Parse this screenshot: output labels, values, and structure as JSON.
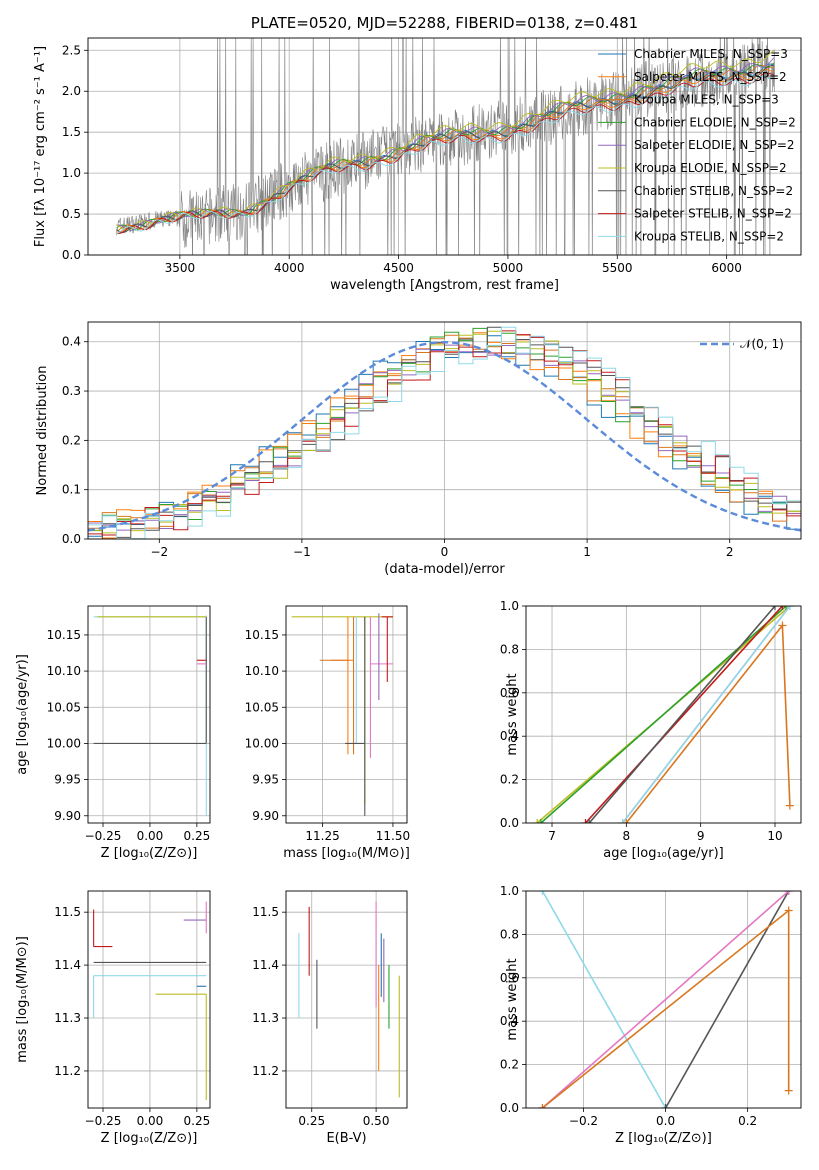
{
  "panels": [
    {
      "id": "spectrum",
      "title": "PLATE=0520, MJD=52288, FIBERID=0138, z=0.481",
      "xlabel": "wavelength [Angstrom, rest frame]",
      "ylabel": "Flux [fλ 10⁻¹⁷ erg cm⁻² s⁻¹ A⁻¹]",
      "xlim": [
        3080,
        6340
      ],
      "ylim": [
        0,
        2.65
      ],
      "xticks": [
        3500,
        4000,
        4500,
        5000,
        5500,
        6000
      ],
      "yticks": [
        "0.0",
        "0.5",
        "1.0",
        "1.5",
        "2.0",
        "2.5"
      ],
      "ytick_values": [
        0,
        0.5,
        1.0,
        1.5,
        2.0,
        2.5
      ],
      "legend": [
        {
          "label": "Chabrier MILES, N_SSP=3",
          "color": "#1f77b4"
        },
        {
          "label": "Salpeter MILES, N_SSP=2",
          "color": "#ff7f0e"
        },
        {
          "label": "Kroupa MILES, N_SSP=3",
          "color": "#d9771f"
        },
        {
          "label": "Chabrier ELODIE, N_SSP=2",
          "color": "#2ca02c"
        },
        {
          "label": "Salpeter ELODIE, N_SSP=2",
          "color": "#9467bd"
        },
        {
          "label": "Kroupa ELODIE, N_SSP=2",
          "color": "#bcbd22"
        },
        {
          "label": "Chabrier STELIB, N_SSP=2",
          "color": "#555555"
        },
        {
          "label": "Salpeter STELIB, N_SSP=2",
          "color": "#c21a1a"
        },
        {
          "label": "Kroupa STELIB, N_SSP=2",
          "color": "#8fd9e8"
        }
      ]
    },
    {
      "id": "residuals",
      "xlabel": "(data-model)/error",
      "ylabel": "Normed distribution",
      "xlim": [
        -2.5,
        2.5
      ],
      "ylim": [
        0,
        0.44
      ],
      "xticks": [
        "−2",
        "−1",
        "0",
        "1",
        "2"
      ],
      "xtick_values": [
        -2,
        -1,
        0,
        1,
        2
      ],
      "yticks": [
        "0.0",
        "0.1",
        "0.2",
        "0.3",
        "0.4"
      ],
      "ytick_values": [
        0,
        0.1,
        0.2,
        0.3,
        0.4
      ],
      "legend_label": "𝒩(0, 1)"
    },
    {
      "id": "age_vs_Z",
      "xlabel": "Z [log₁₀(Z/Z⊙)]",
      "ylabel": "age  [log₁₀(age/yr)]",
      "xlim": [
        -0.33,
        0.32
      ],
      "ylim": [
        9.89,
        10.19
      ],
      "xticks": [
        "−0.25",
        "0.00",
        "0.25"
      ],
      "xtick_values": [
        -0.25,
        0,
        0.25
      ],
      "yticks": [
        "9.90",
        "9.95",
        "10.00",
        "10.05",
        "10.10",
        "10.15"
      ],
      "ytick_values": [
        9.9,
        9.95,
        10.0,
        10.05,
        10.1,
        10.15
      ]
    },
    {
      "id": "age_vs_mass",
      "xlabel": "mass [log₁₀(M/M⊙)]",
      "xlim": [
        11.12,
        11.55
      ],
      "ylim": [
        9.89,
        10.19
      ],
      "xticks": [
        "11.25",
        "11.50"
      ],
      "xtick_values": [
        11.25,
        11.5
      ],
      "yticks": [
        "9.90",
        "9.95",
        "10.00",
        "10.05",
        "10.10",
        "10.15"
      ],
      "ytick_values": [
        9.9,
        9.95,
        10.0,
        10.05,
        10.1,
        10.15
      ]
    },
    {
      "id": "weight_vs_age",
      "xlabel": "age  [log₁₀(age/yr)]",
      "ylabel": "mass weight",
      "xlim": [
        6.65,
        10.35
      ],
      "ylim": [
        0,
        1.0
      ],
      "xticks": [
        "7",
        "8",
        "9",
        "10"
      ],
      "xtick_values": [
        7,
        8,
        9,
        10
      ],
      "yticks": [
        "0.0",
        "0.2",
        "0.4",
        "0.6",
        "0.8",
        "1.0"
      ],
      "ytick_values": [
        0,
        0.2,
        0.4,
        0.6,
        0.8,
        1.0
      ]
    },
    {
      "id": "mass_vs_Z",
      "xlabel": "Z [log₁₀(Z/Z⊙)]",
      "ylabel": "mass [log₁₀(M/M⊙)]",
      "xlim": [
        -0.33,
        0.32
      ],
      "ylim": [
        11.13,
        11.54
      ],
      "xticks": [
        "−0.25",
        "0.00",
        "0.25"
      ],
      "xtick_values": [
        -0.25,
        0,
        0.25
      ],
      "yticks": [
        "11.2",
        "11.3",
        "11.4",
        "11.5"
      ],
      "ytick_values": [
        11.2,
        11.3,
        11.4,
        11.5
      ]
    },
    {
      "id": "mass_vs_EBV",
      "xlabel": "E(B-V)",
      "xlim": [
        0.15,
        0.62
      ],
      "ylim": [
        11.13,
        11.54
      ],
      "xticks": [
        "0.25",
        "0.50"
      ],
      "xtick_values": [
        0.25,
        0.5
      ],
      "yticks": [
        "11.2",
        "11.3",
        "11.4",
        "11.5"
      ],
      "ytick_values": [
        11.2,
        11.3,
        11.4,
        11.5
      ]
    },
    {
      "id": "weight_vs_Z",
      "xlabel": "Z [log₁₀(Z/Z⊙)]",
      "ylabel": "mass weight",
      "xlim": [
        -0.34,
        0.33
      ],
      "ylim": [
        0,
        1.0
      ],
      "xticks": [
        "−0.2",
        "0.0",
        "0.2"
      ],
      "xtick_values": [
        -0.2,
        0,
        0.2
      ],
      "yticks": [
        "0.0",
        "0.2",
        "0.4",
        "0.6",
        "0.8",
        "1.0"
      ],
      "ytick_values": [
        0,
        0.2,
        0.4,
        0.6,
        0.8,
        1.0
      ]
    }
  ],
  "chart_data": [
    {
      "type": "line",
      "title": "PLATE=0520, MJD=52288, FIBERID=0138, z=0.481",
      "xlabel": "wavelength [Angstrom, rest frame]",
      "ylabel": "Flux [fλ 10⁻¹⁷ erg cm⁻² s⁻¹ A⁻¹]",
      "xlim": [
        3080,
        6340
      ],
      "ylim": [
        0,
        2.65
      ],
      "observed_color": "#808080",
      "model_continuum": {
        "x": [
          3210,
          3400,
          3600,
          3800,
          4000,
          4200,
          4400,
          4600,
          4800,
          5000,
          5200,
          5400,
          5600,
          5800,
          6000,
          6220
        ],
        "y": [
          0.35,
          0.43,
          0.46,
          0.55,
          0.83,
          1.05,
          1.2,
          1.35,
          1.45,
          1.55,
          1.7,
          1.85,
          2.0,
          2.1,
          2.2,
          2.35
        ]
      },
      "series": [
        {
          "name": "Chabrier MILES, N_SSP=3",
          "color": "#1f77b4",
          "scale": 1.0
        },
        {
          "name": "Salpeter MILES, N_SSP=2",
          "color": "#ff7f0e",
          "scale": 0.98
        },
        {
          "name": "Kroupa MILES, N_SSP=3",
          "color": "#d9771f",
          "scale": 1.01
        },
        {
          "name": "Chabrier ELODIE, N_SSP=2",
          "color": "#2ca02c",
          "scale": 1.02
        },
        {
          "name": "Salpeter ELODIE, N_SSP=2",
          "color": "#9467bd",
          "scale": 1.03
        },
        {
          "name": "Kroupa ELODIE, N_SSP=2",
          "color": "#bcbd22",
          "scale": 1.06
        },
        {
          "name": "Chabrier STELIB, N_SSP=2",
          "color": "#555555",
          "scale": 0.99
        },
        {
          "name": "Salpeter STELIB, N_SSP=2",
          "color": "#c21a1a",
          "scale": 0.96
        },
        {
          "name": "Kroupa STELIB, N_SSP=2",
          "color": "#8fd9e8",
          "scale": 0.95
        }
      ]
    },
    {
      "type": "bar",
      "xlabel": "(data-model)/error",
      "ylabel": "Normed distribution",
      "xlim": [
        -2.5,
        2.5
      ],
      "ylim": [
        0,
        0.44
      ],
      "bin_edges": [
        -2.5,
        2.5
      ],
      "bin_width": 0.1,
      "reference_curve": {
        "name": "𝒩(0, 1)",
        "mean": 0,
        "sigma": 1,
        "color": "#5b8bd9"
      },
      "series": [
        {
          "color": "#1f77b4"
        },
        {
          "color": "#ff7f0e"
        },
        {
          "color": "#d9771f"
        },
        {
          "color": "#2ca02c"
        },
        {
          "color": "#9467bd"
        },
        {
          "color": "#bcbd22"
        },
        {
          "color": "#555555"
        },
        {
          "color": "#c21a1a"
        },
        {
          "color": "#8fd9e8"
        }
      ]
    },
    {
      "type": "scatter",
      "xlabel": "Z [log₁₀(Z/Z⊙)]",
      "ylabel": "age  [log₁₀(age/yr)]",
      "points": [
        {
          "x": 0.3,
          "y": 10.175,
          "xerr": [
            0.6,
            0
          ],
          "yerr": [
            0.275,
            0.002
          ],
          "color": "#8fd9e8"
        },
        {
          "x": 0.3,
          "y": 10.0,
          "xerr": [
            0.6,
            0
          ],
          "yerr": [
            0,
            0.175
          ],
          "color": "#555555"
        },
        {
          "x": 0.3,
          "y": 10.175,
          "xerr": [
            0.58,
            0
          ],
          "yerr": [
            0.0,
            0.0
          ],
          "color": "#bcbd22"
        },
        {
          "x": 0.3,
          "y": 10.115,
          "xerr": [
            0.05,
            0
          ],
          "yerr": [
            0.0,
            0.0
          ],
          "color": "#c21a1a"
        },
        {
          "x": 0.3,
          "y": 10.11,
          "xerr": [
            0.05,
            0
          ],
          "yerr": [
            0.0,
            0.0
          ],
          "color": "#e377c2"
        }
      ]
    },
    {
      "type": "scatter",
      "xlabel": "mass [log₁₀(M/M⊙)]",
      "points": [
        {
          "x": 11.4,
          "y": 10.175,
          "xerr": [
            0.26,
            0.1
          ],
          "yerr": [
            0.26,
            0.0
          ],
          "color": "#bcbd22"
        },
        {
          "x": 11.34,
          "y": 10.115,
          "xerr": [
            0.06,
            0.0
          ],
          "yerr": [
            0.13,
            0.06
          ],
          "color": "#ff7f0e"
        },
        {
          "x": 11.36,
          "y": 10.115,
          "xerr": [
            0.12,
            0.0
          ],
          "yerr": [
            0.13,
            0.06
          ],
          "color": "#d9771f"
        },
        {
          "x": 11.37,
          "y": 10.11,
          "xerr": [
            0.0,
            0.0
          ],
          "yerr": [
            0.11,
            0.065
          ],
          "color": "#8fd9e8"
        },
        {
          "x": 11.4,
          "y": 10.0,
          "xerr": [
            0.07,
            0.0
          ],
          "yerr": [
            0.1,
            0.175
          ],
          "color": "#555555"
        },
        {
          "x": 11.42,
          "y": 10.11,
          "xerr": [
            0.0,
            0.08
          ],
          "yerr": [
            0.13,
            0.065
          ],
          "color": "#e377c2"
        },
        {
          "x": 11.45,
          "y": 10.16,
          "xerr": [
            0.0,
            0.0
          ],
          "yerr": [
            0.1,
            0.02
          ],
          "color": "#9467bd"
        },
        {
          "x": 11.48,
          "y": 10.175,
          "xerr": [
            0.02,
            0.02
          ],
          "yerr": [
            0.09,
            0.0
          ],
          "color": "#c21a1a"
        }
      ]
    },
    {
      "type": "line",
      "xlabel": "age  [log₁₀(age/yr)]",
      "ylabel": "mass weight",
      "series": [
        {
          "color": "#bcbd22",
          "x": [
            6.8,
            10.2
          ],
          "y": [
            0,
            1.0
          ]
        },
        {
          "color": "#2ca02c",
          "x": [
            6.85,
            10.15
          ],
          "y": [
            0,
            1.0
          ]
        },
        {
          "color": "#c21a1a",
          "x": [
            7.45,
            10.1
          ],
          "y": [
            0,
            1.0
          ]
        },
        {
          "color": "#555555",
          "x": [
            7.5,
            10.0
          ],
          "y": [
            0,
            1.0
          ]
        },
        {
          "color": "#e377c2",
          "x": [
            7.95,
            10.2
          ],
          "y": [
            0,
            1.0
          ]
        },
        {
          "color": "#8fd9e8",
          "x": [
            7.95,
            10.2
          ],
          "y": [
            0,
            1.0
          ]
        },
        {
          "color": "#d9771f",
          "x": [
            8.0,
            10.1,
            10.2
          ],
          "y": [
            0,
            0.91,
            0.08
          ]
        }
      ]
    },
    {
      "type": "scatter",
      "xlabel": "Z [log₁₀(Z/Z⊙)]",
      "ylabel": "mass [log₁₀(M/M⊙)]",
      "points": [
        {
          "x": -0.3,
          "y": 11.435,
          "xerr": [
            0,
            0.1
          ],
          "yerr": [
            0.0,
            0.07
          ],
          "color": "#c21a1a"
        },
        {
          "x": -0.3,
          "y": 11.405,
          "xerr": [
            0,
            0.6
          ],
          "yerr": [
            0.0,
            0.0
          ],
          "color": "#555555"
        },
        {
          "x": -0.3,
          "y": 11.38,
          "xerr": [
            0,
            0.6
          ],
          "yerr": [
            0.08,
            0.0
          ],
          "color": "#8fd9e8"
        },
        {
          "x": 0.3,
          "y": 11.345,
          "xerr": [
            0.27,
            0
          ],
          "yerr": [
            0.2,
            0.0
          ],
          "color": "#bcbd22"
        },
        {
          "x": 0.3,
          "y": 11.485,
          "xerr": [
            0.12,
            0
          ],
          "yerr": [
            0.0,
            0.0
          ],
          "color": "#9467bd"
        },
        {
          "x": 0.3,
          "y": 11.36,
          "xerr": [
            0.05,
            0
          ],
          "yerr": [
            0.0,
            0.0
          ],
          "color": "#1f77b4"
        },
        {
          "x": 0.3,
          "y": 11.46,
          "xerr": [
            0.0,
            0.0
          ],
          "yerr": [
            0.0,
            0.06
          ],
          "color": "#e377c2"
        }
      ]
    },
    {
      "type": "scatter",
      "xlabel": "E(B-V)",
      "points": [
        {
          "x": 0.2,
          "y": 11.38,
          "yerr": [
            0.08,
            0.08
          ],
          "color": "#8fd9e8"
        },
        {
          "x": 0.24,
          "y": 11.45,
          "yerr": [
            0.07,
            0.06
          ],
          "color": "#c21a1a"
        },
        {
          "x": 0.27,
          "y": 11.35,
          "yerr": [
            0.07,
            0.06
          ],
          "color": "#555555"
        },
        {
          "x": 0.5,
          "y": 11.42,
          "yerr": [
            0.1,
            0.1
          ],
          "color": "#e377c2"
        },
        {
          "x": 0.51,
          "y": 11.3,
          "yerr": [
            0.1,
            0.1
          ],
          "color": "#ff7f0e"
        },
        {
          "x": 0.52,
          "y": 11.4,
          "yerr": [
            0.06,
            0.06
          ],
          "color": "#1f77b4"
        },
        {
          "x": 0.53,
          "y": 11.4,
          "yerr": [
            0.07,
            0.05
          ],
          "color": "#9467bd"
        },
        {
          "x": 0.55,
          "y": 11.35,
          "yerr": [
            0.07,
            0.05
          ],
          "color": "#2ca02c"
        },
        {
          "x": 0.59,
          "y": 11.26,
          "yerr": [
            0.11,
            0.12
          ],
          "color": "#bcbd22"
        }
      ]
    },
    {
      "type": "line",
      "xlabel": "Z [log₁₀(Z/Z⊙)]",
      "ylabel": "mass weight",
      "series": [
        {
          "color": "#8fd9e8",
          "x": [
            -0.3,
            0.0
          ],
          "y": [
            1.0,
            0
          ]
        },
        {
          "color": "#555555",
          "x": [
            0.0,
            0.3
          ],
          "y": [
            0,
            1.0
          ]
        },
        {
          "color": "#e377c2",
          "x": [
            -0.3,
            0.3
          ],
          "y": [
            0,
            1.0
          ]
        },
        {
          "color": "#d9771f",
          "x": [
            -0.3,
            0.3,
            0.3
          ],
          "y": [
            0,
            0.91,
            0.08
          ]
        }
      ]
    }
  ]
}
